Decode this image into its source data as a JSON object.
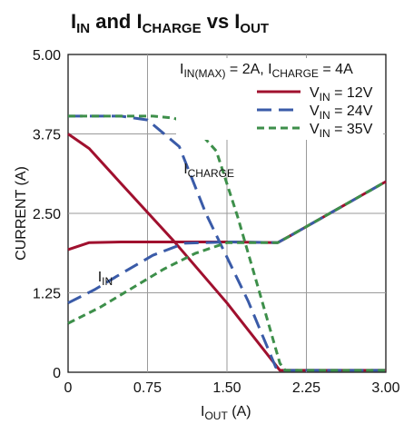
{
  "chart_data": {
    "type": "line",
    "title": {
      "main": "I",
      "sub1": "IN",
      "mid": " and I",
      "sub2": "CHARGE",
      "tail": " vs I",
      "sub3": "OUT"
    },
    "xlabel": {
      "main": "I",
      "sub": "OUT",
      "unit": " (A)"
    },
    "ylabel": "CURRENT (A)",
    "xlim": [
      0,
      3
    ],
    "ylim": [
      0,
      5
    ],
    "xticks": [
      0,
      0.75,
      1.5,
      2.25,
      3
    ],
    "xtick_labels": [
      "0",
      "0.75",
      "1.50",
      "2.25",
      "3.00"
    ],
    "yticks": [
      0,
      1.25,
      2.5,
      3.75,
      5
    ],
    "ytick_labels": [
      "0",
      "1.25",
      "2.50",
      "3.75",
      "5.00"
    ],
    "grid": true,
    "legend_placement": "top-right",
    "legend_header": {
      "a": "I",
      "a_sub": "IN(MAX)",
      "b": " = 2A, I",
      "b_sub": "CHARGE",
      "c": " = 4A"
    },
    "series": [
      {
        "name": {
          "main": "V",
          "sub": "IN",
          "tail": " = 12V"
        },
        "color": "#a0102e",
        "dash": "solid"
      },
      {
        "name": {
          "main": "V",
          "sub": "IN",
          "tail": " = 24V"
        },
        "color": "#3a5ba8",
        "dash": "long-dash"
      },
      {
        "name": {
          "main": "V",
          "sub": "IN",
          "tail": " = 35V"
        },
        "color": "#3d8f4a",
        "dash": "short-dash"
      }
    ],
    "curves": [
      {
        "series": 0,
        "role": "charge",
        "points": [
          [
            0,
            3.75
          ],
          [
            0.2,
            3.52
          ],
          [
            0.5,
            2.97
          ],
          [
            1.0,
            2.06
          ],
          [
            1.5,
            1.09
          ],
          [
            2.0,
            0.03
          ],
          [
            3.0,
            0.03
          ]
        ]
      },
      {
        "series": 0,
        "role": "in",
        "points": [
          [
            0,
            1.93
          ],
          [
            0.2,
            2.04
          ],
          [
            0.5,
            2.05
          ],
          [
            1.0,
            2.05
          ],
          [
            1.5,
            2.05
          ],
          [
            1.98,
            2.04
          ],
          [
            2.1,
            2.15
          ],
          [
            3.0,
            3.0
          ]
        ]
      },
      {
        "series": 1,
        "role": "charge",
        "points": [
          [
            0,
            4.03
          ],
          [
            0.5,
            4.03
          ],
          [
            0.75,
            3.97
          ],
          [
            1.05,
            3.55
          ],
          [
            1.3,
            2.5
          ],
          [
            1.7,
            1.12
          ],
          [
            1.96,
            0.08
          ],
          [
            2.05,
            0.03
          ],
          [
            3.0,
            0.03
          ]
        ]
      },
      {
        "series": 1,
        "role": "in",
        "points": [
          [
            0,
            1.09
          ],
          [
            0.25,
            1.3
          ],
          [
            0.5,
            1.55
          ],
          [
            0.8,
            1.84
          ],
          [
            1.1,
            2.03
          ],
          [
            1.5,
            2.05
          ],
          [
            1.98,
            2.04
          ],
          [
            2.1,
            2.15
          ],
          [
            3.0,
            3.0
          ]
        ]
      },
      {
        "series": 2,
        "role": "charge",
        "points": [
          [
            0,
            4.03
          ],
          [
            0.8,
            4.03
          ],
          [
            1.0,
            4.0
          ],
          [
            1.2,
            3.85
          ],
          [
            1.4,
            3.48
          ],
          [
            1.6,
            2.45
          ],
          [
            1.8,
            1.3
          ],
          [
            2.0,
            0.14
          ],
          [
            2.05,
            0.03
          ],
          [
            3.0,
            0.03
          ]
        ]
      },
      {
        "series": 2,
        "role": "in",
        "points": [
          [
            0,
            0.77
          ],
          [
            0.3,
            1.02
          ],
          [
            0.6,
            1.32
          ],
          [
            0.9,
            1.62
          ],
          [
            1.2,
            1.87
          ],
          [
            1.5,
            2.04
          ],
          [
            1.98,
            2.04
          ],
          [
            2.1,
            2.15
          ],
          [
            3.0,
            3.0
          ]
        ]
      }
    ],
    "annotations": [
      {
        "main": "I",
        "sub": "CHARGE",
        "x": 1.09,
        "y": 3.13
      },
      {
        "main": "I",
        "sub": "IN",
        "x": 0.28,
        "y": 1.43
      }
    ]
  }
}
